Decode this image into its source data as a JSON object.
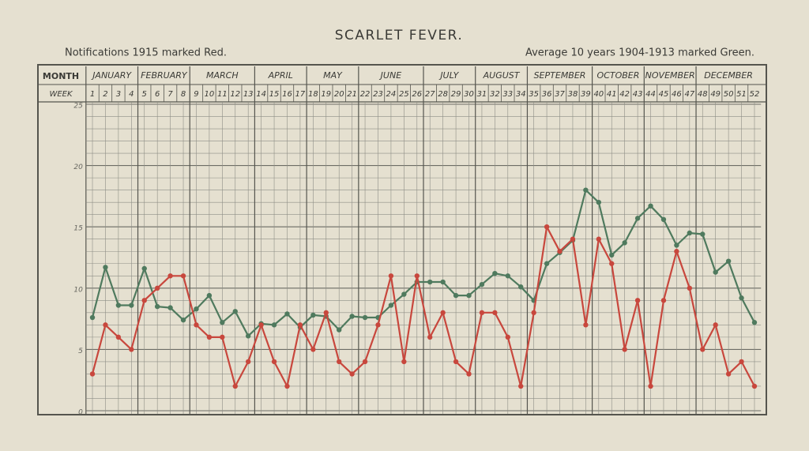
{
  "chart_data": {
    "type": "line",
    "title": "SCARLET FEVER.",
    "subtitle_left": "Notifications 1915 marked Red.",
    "subtitle_right": "Average 10 years 1904-1913 marked Green.",
    "month_header": "MONTH",
    "week_header": "WEEK",
    "months": [
      "JANUARY",
      "FEBRUARY",
      "MARCH",
      "APRIL",
      "MAY",
      "JUNE",
      "JULY",
      "AUGUST",
      "SEPTEMBER",
      "OCTOBER",
      "NOVEMBER",
      "DECEMBER"
    ],
    "x": [
      1,
      2,
      3,
      4,
      5,
      6,
      7,
      8,
      9,
      10,
      11,
      12,
      13,
      14,
      15,
      16,
      17,
      18,
      19,
      20,
      21,
      22,
      23,
      24,
      25,
      26,
      27,
      28,
      29,
      30,
      31,
      32,
      33,
      34,
      35,
      36,
      37,
      38,
      39,
      40,
      41,
      42,
      43,
      44,
      45,
      46,
      47,
      48,
      49,
      50,
      51,
      52
    ],
    "xlim": [
      1,
      52
    ],
    "ylim": [
      0,
      25
    ],
    "yticks": [
      0,
      5,
      10,
      15,
      20,
      25
    ],
    "grid": true,
    "series": [
      {
        "name": "Average 10 years 1904-1913",
        "color": "#4f7a5e",
        "values": [
          7.6,
          11.7,
          8.6,
          8.6,
          11.6,
          8.5,
          8.4,
          7.4,
          8.3,
          9.4,
          7.2,
          8.1,
          6.1,
          7.1,
          7.0,
          7.9,
          6.8,
          7.8,
          7.7,
          6.6,
          7.7,
          7.6,
          7.6,
          8.6,
          9.5,
          10.5,
          10.5,
          10.5,
          9.4,
          9.4,
          10.3,
          11.2,
          11.0,
          10.1,
          9.0,
          12.0,
          12.9,
          13.9,
          18.0,
          17.0,
          12.7,
          13.7,
          15.7,
          16.7,
          15.6,
          13.5,
          14.5,
          14.4,
          11.3,
          12.2,
          9.2,
          7.2
        ]
      },
      {
        "name": "Notifications 1915",
        "color": "#c8473d",
        "values": [
          3,
          7,
          6,
          5,
          9,
          10,
          11,
          11,
          7,
          6,
          6,
          2,
          4,
          7,
          4,
          2,
          7,
          5,
          8,
          4,
          3,
          4,
          7,
          11,
          4,
          11,
          6,
          8,
          4,
          3,
          8,
          8,
          6,
          2,
          8,
          15,
          13,
          14,
          7,
          14,
          12,
          5,
          9,
          2,
          9,
          13,
          10,
          5,
          7,
          3,
          4,
          2
        ]
      }
    ]
  }
}
